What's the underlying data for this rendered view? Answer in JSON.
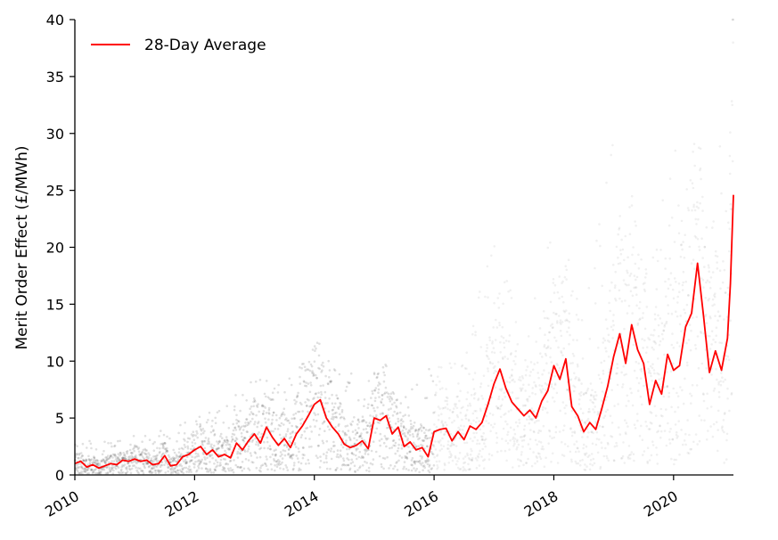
{
  "chart_data": {
    "type": "line",
    "ylabel": "Merit Order Effect (£/MWh)",
    "xlim": [
      2010,
      2021
    ],
    "ylim": [
      0,
      40
    ],
    "x_ticks": [
      2010,
      2012,
      2014,
      2016,
      2018,
      2020
    ],
    "x_tick_labels": [
      "2010",
      "2012",
      "2014",
      "2016",
      "2018",
      "2020"
    ],
    "y_ticks": [
      0,
      5,
      10,
      15,
      20,
      25,
      30,
      35,
      40
    ],
    "y_tick_labels": [
      "0",
      "5",
      "10",
      "15",
      "20",
      "25",
      "30",
      "35",
      "40"
    ],
    "grid": false,
    "legend_position": "top-left",
    "colors": {
      "average": "#ff0000",
      "scatter": "#000000"
    },
    "series": [
      {
        "name": "28-Day Average",
        "kind": "line",
        "x": [
          2010.0,
          2010.1,
          2010.2,
          2010.3,
          2010.4,
          2010.5,
          2010.6,
          2010.7,
          2010.8,
          2010.9,
          2011.0,
          2011.1,
          2011.2,
          2011.3,
          2011.4,
          2011.5,
          2011.6,
          2011.7,
          2011.8,
          2011.9,
          2012.0,
          2012.1,
          2012.2,
          2012.3,
          2012.4,
          2012.5,
          2012.6,
          2012.7,
          2012.8,
          2012.9,
          2013.0,
          2013.1,
          2013.2,
          2013.3,
          2013.4,
          2013.5,
          2013.6,
          2013.7,
          2013.8,
          2013.9,
          2014.0,
          2014.1,
          2014.2,
          2014.3,
          2014.4,
          2014.5,
          2014.6,
          2014.7,
          2014.8,
          2014.9,
          2015.0,
          2015.1,
          2015.2,
          2015.3,
          2015.4,
          2015.5,
          2015.6,
          2015.7,
          2015.8,
          2015.9,
          2016.0,
          2016.1,
          2016.2,
          2016.3,
          2016.4,
          2016.5,
          2016.6,
          2016.7,
          2016.8,
          2016.9,
          2017.0,
          2017.1,
          2017.2,
          2017.3,
          2017.4,
          2017.5,
          2017.6,
          2017.7,
          2017.8,
          2017.9,
          2018.0,
          2018.1,
          2018.2,
          2018.3,
          2018.4,
          2018.5,
          2018.6,
          2018.7,
          2018.8,
          2018.9,
          2019.0,
          2019.1,
          2019.2,
          2019.3,
          2019.4,
          2019.5,
          2019.6,
          2019.7,
          2019.8,
          2019.9,
          2020.0,
          2020.1,
          2020.2,
          2020.3,
          2020.4,
          2020.5,
          2020.6,
          2020.7,
          2020.8,
          2020.9,
          2020.95,
          2021.0
        ],
        "y": [
          1.0,
          1.2,
          0.7,
          0.9,
          0.6,
          0.8,
          1.0,
          0.9,
          1.3,
          1.2,
          1.4,
          1.2,
          1.3,
          0.9,
          1.0,
          1.7,
          0.8,
          0.9,
          1.6,
          1.8,
          2.2,
          2.5,
          1.8,
          2.2,
          1.6,
          1.8,
          1.5,
          2.8,
          2.2,
          3.0,
          3.6,
          2.8,
          4.2,
          3.3,
          2.6,
          3.2,
          2.4,
          3.6,
          4.3,
          5.2,
          6.2,
          6.6,
          5.0,
          4.2,
          3.6,
          2.7,
          2.4,
          2.6,
          3.0,
          2.3,
          5.0,
          4.8,
          5.2,
          3.6,
          4.2,
          2.5,
          2.9,
          2.2,
          2.4,
          1.6,
          3.8,
          4.0,
          4.1,
          3.0,
          3.8,
          3.1,
          4.3,
          4.0,
          4.6,
          6.2,
          8.0,
          9.3,
          7.6,
          6.4,
          5.8,
          5.2,
          5.7,
          5.0,
          6.5,
          7.4,
          9.6,
          8.4,
          10.2,
          6.0,
          5.2,
          3.8,
          4.6,
          4.0,
          5.8,
          7.8,
          10.4,
          12.4,
          9.8,
          13.2,
          11.0,
          9.8,
          6.2,
          8.3,
          7.1,
          10.6,
          9.2,
          9.6,
          13.0,
          14.2,
          18.6,
          14.0,
          9.0,
          10.9,
          9.2,
          12.0,
          16.8,
          24.6
        ]
      },
      {
        "name": "",
        "kind": "scatter-envelope",
        "x": [
          2010.0,
          2010.5,
          2011.0,
          2011.5,
          2012.0,
          2012.5,
          2013.0,
          2013.5,
          2014.0,
          2014.5,
          2015.0,
          2015.5,
          2016.0,
          2016.5,
          2017.0,
          2017.5,
          2018.0,
          2018.5,
          2019.0,
          2019.5,
          2020.0,
          2020.5,
          2021.0
        ],
        "y_high": [
          3,
          3,
          3.5,
          4,
          5,
          6,
          9,
          8,
          11,
          9,
          9,
          7,
          10,
          10,
          22,
          12,
          24,
          14,
          30,
          18,
          32,
          22,
          40
        ]
      }
    ]
  }
}
